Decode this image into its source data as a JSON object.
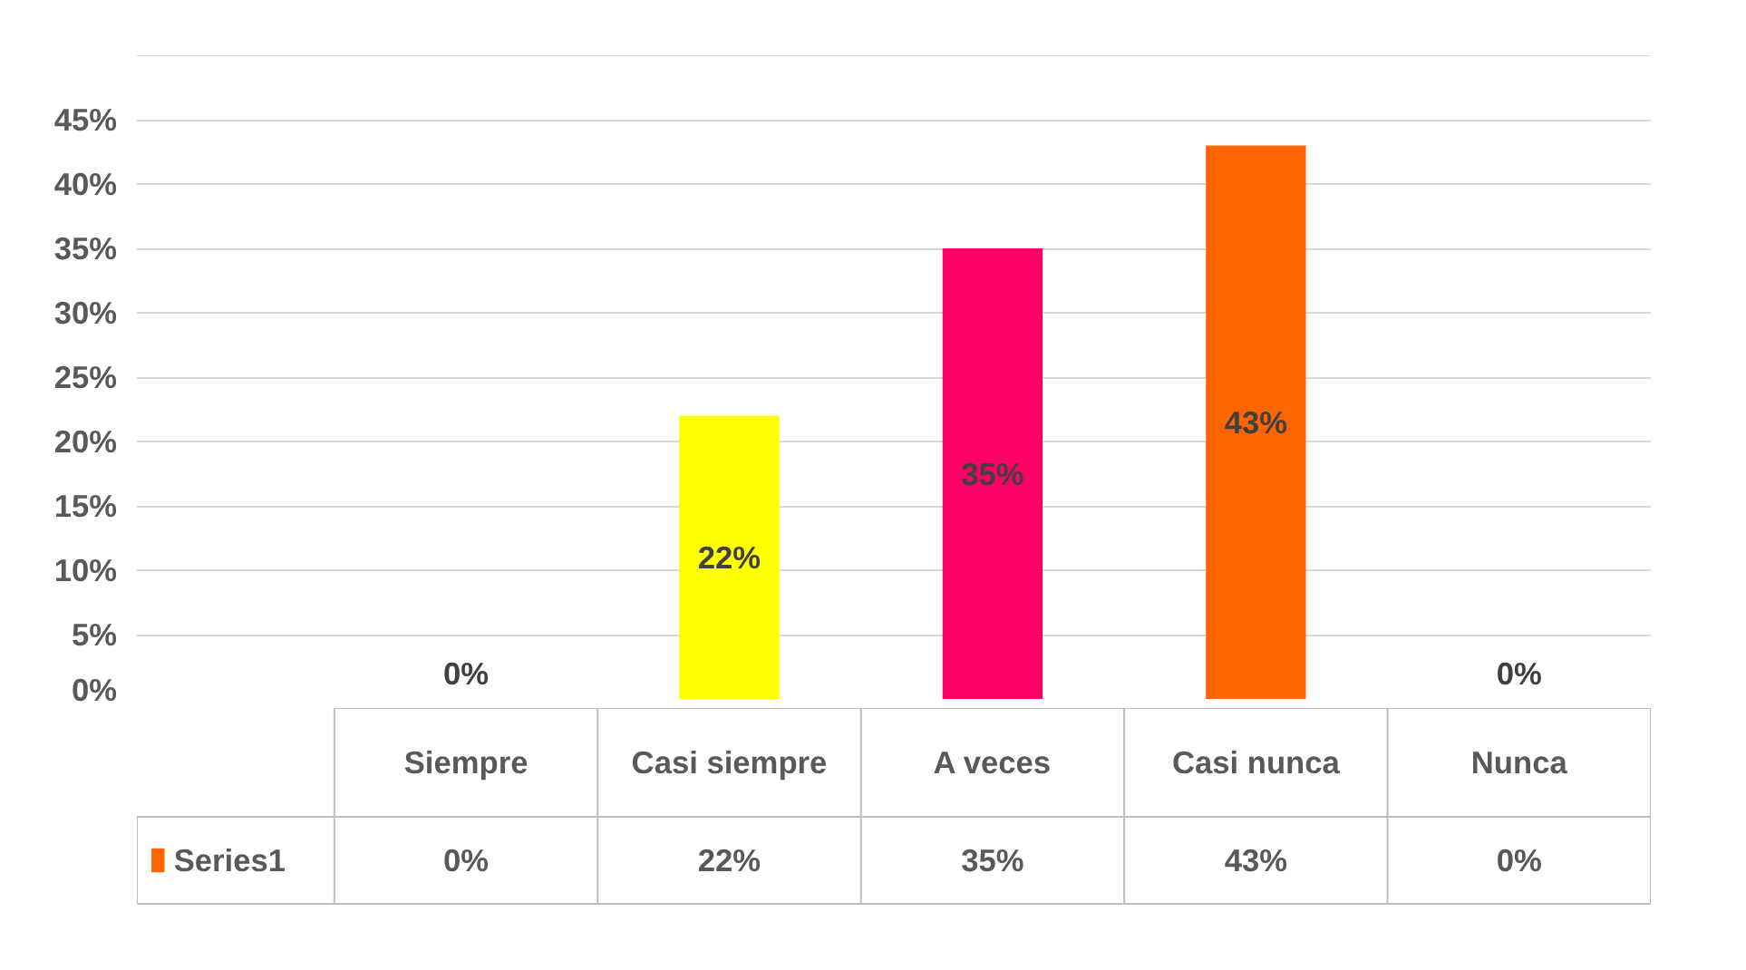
{
  "chart_data": {
    "type": "bar",
    "categories": [
      "Siempre",
      "Casi siempre",
      "A veces",
      "Casi nunca",
      "Nunca"
    ],
    "series": [
      {
        "name": "Series1",
        "color": "#ff6600",
        "values": [
          0,
          22,
          35,
          43,
          0
        ],
        "colors": [
          "#c00000",
          "#ffff00",
          "#ff0066",
          "#ff6600",
          "#c07030"
        ],
        "value_labels": [
          "0%",
          "22%",
          "35%",
          "43%",
          "0%"
        ]
      }
    ],
    "ylim": [
      0,
      50
    ],
    "yticks": [
      {
        "value": 0,
        "label": "0%"
      },
      {
        "value": 5,
        "label": "5%"
      },
      {
        "value": 10,
        "label": "10%"
      },
      {
        "value": 15,
        "label": "15%"
      },
      {
        "value": 20,
        "label": "20%"
      },
      {
        "value": 25,
        "label": "25%"
      },
      {
        "value": 30,
        "label": "30%"
      },
      {
        "value": 35,
        "label": "35%"
      },
      {
        "value": 40,
        "label": "40%"
      },
      {
        "value": 45,
        "label": "45%"
      },
      {
        "value": 50,
        "label": null
      }
    ],
    "grid": "y",
    "data_labels": true,
    "legend": "bottom"
  }
}
